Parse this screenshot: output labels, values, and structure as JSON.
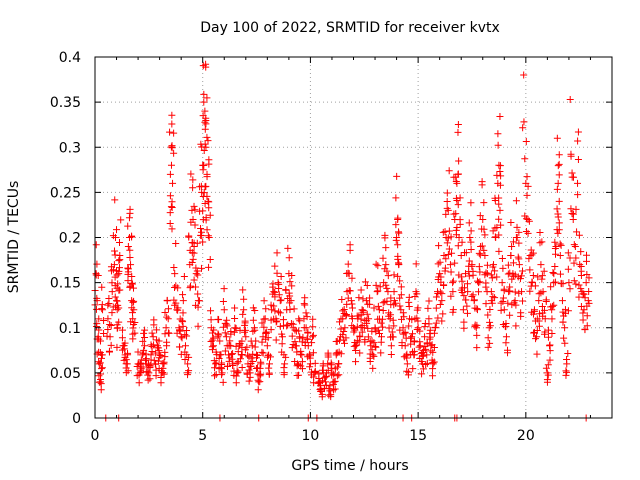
{
  "chart_data": {
    "type": "scatter",
    "title": "Day 100 of 2022, SRMTID for receiver kvtx",
    "xlabel": "GPS time / hours",
    "ylabel": "SRMTID / TECUs",
    "xlim": [
      0,
      24
    ],
    "ylim": [
      0,
      0.4
    ],
    "xticks": [
      0,
      5,
      10,
      15,
      20
    ],
    "yticks": [
      0,
      0.05,
      0.1,
      0.15,
      0.2,
      0.25,
      0.3,
      0.35,
      0.4
    ],
    "xtick_labels": [
      "0",
      "5",
      "10",
      "15",
      "20"
    ],
    "ytick_labels": [
      "0",
      "0.05",
      "0.1",
      "0.15",
      "0.2",
      "0.25",
      "0.3",
      "0.35",
      "0.4"
    ],
    "grid": true,
    "marker": "+",
    "color": "#ff0000",
    "series": [
      {
        "name": "kvtx",
        "points": [
          [
            0.05,
            0.16
          ],
          [
            0.1,
            0.13
          ],
          [
            0.15,
            0.09
          ],
          [
            0.2,
            0.06
          ],
          [
            0.25,
            0.04
          ],
          [
            0.3,
            0.07
          ],
          [
            0.35,
            0.12
          ],
          [
            0.6,
            0.11
          ],
          [
            0.7,
            0.09
          ],
          [
            0.8,
            0.14
          ],
          [
            0.9,
            0.17
          ],
          [
            0.95,
            0.2
          ],
          [
            1.0,
            0.13
          ],
          [
            1.05,
            0.1
          ],
          [
            1.1,
            0.16
          ],
          [
            1.15,
            0.18
          ],
          [
            1.3,
            0.08
          ],
          [
            1.4,
            0.07
          ],
          [
            1.5,
            0.06
          ],
          [
            1.55,
            0.19
          ],
          [
            1.6,
            0.2
          ],
          [
            1.65,
            0.17
          ],
          [
            1.7,
            0.13
          ],
          [
            1.75,
            0.11
          ],
          [
            1.8,
            0.12
          ],
          [
            2.0,
            0.06
          ],
          [
            2.1,
            0.05
          ],
          [
            2.2,
            0.07
          ],
          [
            2.3,
            0.08
          ],
          [
            2.4,
            0.06
          ],
          [
            2.5,
            0.05
          ],
          [
            2.6,
            0.07
          ],
          [
            2.7,
            0.09
          ],
          [
            2.8,
            0.06
          ],
          [
            2.9,
            0.08
          ],
          [
            3.0,
            0.07
          ],
          [
            3.1,
            0.05
          ],
          [
            3.2,
            0.06
          ],
          [
            3.3,
            0.1
          ],
          [
            3.4,
            0.11
          ],
          [
            3.5,
            0.27
          ],
          [
            3.55,
            0.28
          ],
          [
            3.6,
            0.26
          ],
          [
            3.7,
            0.16
          ],
          [
            3.8,
            0.12
          ],
          [
            3.9,
            0.1
          ],
          [
            4.0,
            0.09
          ],
          [
            4.1,
            0.13
          ],
          [
            4.2,
            0.08
          ],
          [
            4.3,
            0.06
          ],
          [
            4.4,
            0.17
          ],
          [
            4.5,
            0.23
          ],
          [
            4.55,
            0.22
          ],
          [
            4.6,
            0.19
          ],
          [
            4.7,
            0.16
          ],
          [
            4.8,
            0.13
          ],
          [
            4.9,
            0.21
          ],
          [
            4.95,
            0.25
          ],
          [
            5.0,
            0.28
          ],
          [
            5.05,
            0.35
          ],
          [
            5.1,
            0.34
          ],
          [
            5.12,
            0.32
          ],
          [
            5.15,
            0.3
          ],
          [
            5.2,
            0.27
          ],
          [
            5.25,
            0.24
          ],
          [
            5.3,
            0.2
          ],
          [
            5.4,
            0.1
          ],
          [
            5.5,
            0.08
          ],
          [
            5.6,
            0.06
          ],
          [
            5.7,
            0.09
          ],
          [
            5.8,
            0.07
          ],
          [
            5.9,
            0.05
          ],
          [
            6.0,
            0.12
          ],
          [
            6.1,
            0.09
          ],
          [
            6.2,
            0.07
          ],
          [
            6.3,
            0.08
          ],
          [
            6.4,
            0.06
          ],
          [
            6.5,
            0.1
          ],
          [
            6.6,
            0.05
          ],
          [
            6.7,
            0.08
          ],
          [
            6.8,
            0.07
          ],
          [
            6.9,
            0.12
          ],
          [
            7.0,
            0.09
          ],
          [
            7.1,
            0.06
          ],
          [
            7.2,
            0.05
          ],
          [
            7.3,
            0.08
          ],
          [
            7.4,
            0.1
          ],
          [
            7.5,
            0.07
          ],
          [
            7.6,
            0.04
          ],
          [
            7.7,
            0.06
          ],
          [
            7.8,
            0.09
          ],
          [
            7.9,
            0.11
          ],
          [
            8.0,
            0.08
          ],
          [
            8.1,
            0.06
          ],
          [
            8.2,
            0.12
          ],
          [
            8.3,
            0.14
          ],
          [
            8.4,
            0.11
          ],
          [
            8.5,
            0.15
          ],
          [
            8.6,
            0.13
          ],
          [
            8.7,
            0.09
          ],
          [
            8.8,
            0.06
          ],
          [
            8.9,
            0.12
          ],
          [
            9.0,
            0.16
          ],
          [
            9.1,
            0.13
          ],
          [
            9.2,
            0.1
          ],
          [
            9.3,
            0.08
          ],
          [
            9.4,
            0.06
          ],
          [
            9.5,
            0.09
          ],
          [
            9.6,
            0.07
          ],
          [
            9.7,
            0.11
          ],
          [
            9.8,
            0.1
          ],
          [
            9.9,
            0.08
          ],
          [
            10.0,
            0.06
          ],
          [
            10.1,
            0.09
          ],
          [
            10.2,
            0.05
          ],
          [
            10.4,
            0.04
          ],
          [
            10.5,
            0.03
          ],
          [
            10.6,
            0.05
          ],
          [
            10.7,
            0.04
          ],
          [
            10.8,
            0.06
          ],
          [
            10.9,
            0.03
          ],
          [
            11.0,
            0.05
          ],
          [
            11.1,
            0.04
          ],
          [
            11.2,
            0.07
          ],
          [
            11.3,
            0.06
          ],
          [
            11.4,
            0.09
          ],
          [
            11.5,
            0.11
          ],
          [
            11.6,
            0.1
          ],
          [
            11.7,
            0.14
          ],
          [
            11.8,
            0.16
          ],
          [
            11.9,
            0.13
          ],
          [
            12.0,
            0.1
          ],
          [
            12.1,
            0.08
          ],
          [
            12.2,
            0.11
          ],
          [
            12.3,
            0.09
          ],
          [
            12.4,
            0.12
          ],
          [
            12.5,
            0.1
          ],
          [
            12.6,
            0.13
          ],
          [
            12.7,
            0.11
          ],
          [
            12.8,
            0.08
          ],
          [
            12.9,
            0.07
          ],
          [
            13.0,
            0.1
          ],
          [
            13.1,
            0.14
          ],
          [
            13.2,
            0.12
          ],
          [
            13.3,
            0.09
          ],
          [
            13.4,
            0.15
          ],
          [
            13.5,
            0.17
          ],
          [
            13.6,
            0.14
          ],
          [
            13.7,
            0.11
          ],
          [
            13.8,
            0.09
          ],
          [
            13.9,
            0.13
          ],
          [
            14.0,
            0.2
          ],
          [
            14.05,
            0.22
          ],
          [
            14.1,
            0.17
          ],
          [
            14.2,
            0.12
          ],
          [
            14.3,
            0.1
          ],
          [
            14.4,
            0.08
          ],
          [
            14.5,
            0.06
          ],
          [
            14.6,
            0.11
          ],
          [
            14.7,
            0.09
          ],
          [
            14.8,
            0.07
          ],
          [
            14.9,
            0.14
          ],
          [
            15.0,
            0.1
          ],
          [
            15.1,
            0.08
          ],
          [
            15.2,
            0.06
          ],
          [
            15.3,
            0.09
          ],
          [
            15.4,
            0.07
          ],
          [
            15.5,
            0.11
          ],
          [
            15.6,
            0.08
          ],
          [
            15.7,
            0.06
          ],
          [
            15.8,
            0.1
          ],
          [
            15.9,
            0.14
          ],
          [
            16.0,
            0.16
          ],
          [
            16.1,
            0.13
          ],
          [
            16.2,
            0.18
          ],
          [
            16.3,
            0.2
          ],
          [
            16.4,
            0.23
          ],
          [
            16.5,
            0.17
          ],
          [
            16.6,
            0.15
          ],
          [
            16.7,
            0.22
          ],
          [
            16.8,
            0.26
          ],
          [
            16.85,
            0.27
          ],
          [
            16.9,
            0.2
          ],
          [
            17.0,
            0.18
          ],
          [
            17.1,
            0.12
          ],
          [
            17.2,
            0.16
          ],
          [
            17.3,
            0.14
          ],
          [
            17.4,
            0.2
          ],
          [
            17.5,
            0.17
          ],
          [
            17.6,
            0.13
          ],
          [
            17.7,
            0.1
          ],
          [
            17.8,
            0.15
          ],
          [
            17.9,
            0.19
          ],
          [
            18.0,
            0.22
          ],
          [
            18.1,
            0.18
          ],
          [
            18.2,
            0.14
          ],
          [
            18.3,
            0.1
          ],
          [
            18.4,
            0.13
          ],
          [
            18.5,
            0.17
          ],
          [
            18.6,
            0.2
          ],
          [
            18.7,
            0.26
          ],
          [
            18.75,
            0.28
          ],
          [
            18.8,
            0.23
          ],
          [
            18.9,
            0.15
          ],
          [
            19.0,
            0.12
          ],
          [
            19.1,
            0.09
          ],
          [
            19.2,
            0.14
          ],
          [
            19.3,
            0.18
          ],
          [
            19.4,
            0.16
          ],
          [
            19.5,
            0.13
          ],
          [
            19.6,
            0.2
          ],
          [
            19.7,
            0.17
          ],
          [
            19.8,
            0.14
          ],
          [
            19.9,
            0.38
          ],
          [
            20.0,
            0.26
          ],
          [
            20.1,
            0.22
          ],
          [
            20.2,
            0.18
          ],
          [
            20.3,
            0.15
          ],
          [
            20.4,
            0.12
          ],
          [
            20.5,
            0.09
          ],
          [
            20.6,
            0.13
          ],
          [
            20.7,
            0.17
          ],
          [
            20.8,
            0.14
          ],
          [
            20.9,
            0.11
          ],
          [
            21.0,
            0.05
          ],
          [
            21.1,
            0.08
          ],
          [
            21.2,
            0.12
          ],
          [
            21.3,
            0.16
          ],
          [
            21.4,
            0.19
          ],
          [
            21.5,
            0.26
          ],
          [
            21.55,
            0.24
          ],
          [
            21.6,
            0.18
          ],
          [
            21.7,
            0.13
          ],
          [
            21.8,
            0.1
          ],
          [
            21.9,
            0.06
          ],
          [
            22.0,
            0.15
          ],
          [
            22.1,
            0.29
          ],
          [
            22.2,
            0.22
          ],
          [
            22.3,
            0.19
          ],
          [
            22.4,
            0.26
          ],
          [
            22.5,
            0.17
          ],
          [
            22.6,
            0.14
          ],
          [
            22.7,
            0.12
          ],
          [
            22.8,
            0.15
          ],
          [
            22.9,
            0.13
          ]
        ],
        "zero_points": [
          0.5,
          1.1,
          5.8,
          7.6,
          9.9,
          10.3,
          14.3,
          14.7,
          16.7,
          16.8,
          22.8
        ]
      }
    ]
  }
}
